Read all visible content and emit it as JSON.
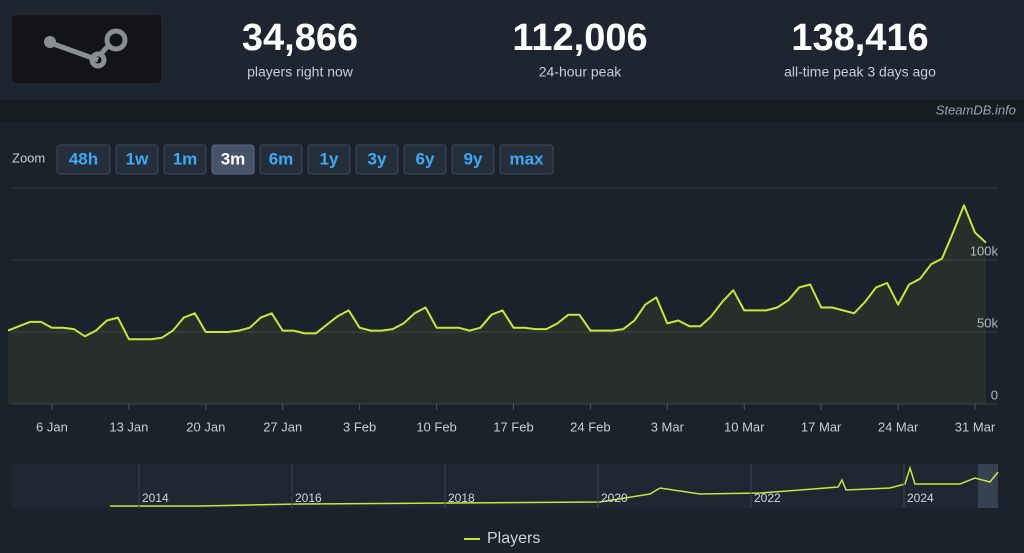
{
  "header": {
    "stats": [
      {
        "value": "34,866",
        "label": "players right now"
      },
      {
        "value": "112,006",
        "label": "24-hour peak"
      },
      {
        "value": "138,416",
        "label": "all-time peak 3 days ago"
      }
    ],
    "source": "SteamDB.info"
  },
  "zoom": {
    "label": "Zoom",
    "buttons": [
      "48h",
      "1w",
      "1m",
      "3m",
      "6m",
      "1y",
      "3y",
      "6y",
      "9y",
      "max"
    ],
    "active": "3m"
  },
  "chart_data": {
    "type": "line",
    "categories": [
      null,
      null,
      null,
      null,
      "6 Jan",
      null,
      null,
      null,
      null,
      null,
      null,
      "13 Jan",
      null,
      null,
      null,
      null,
      null,
      null,
      "20 Jan",
      null,
      null,
      null,
      null,
      null,
      null,
      "27 Jan",
      null,
      null,
      null,
      null,
      null,
      null,
      "3 Feb",
      null,
      null,
      null,
      null,
      null,
      null,
      "10 Feb",
      null,
      null,
      null,
      null,
      null,
      null,
      "17 Feb",
      null,
      null,
      null,
      null,
      null,
      null,
      "24 Feb",
      null,
      null,
      null,
      null,
      null,
      null,
      "3 Mar",
      null,
      null,
      null,
      null,
      null,
      null,
      "10 Mar",
      null,
      null,
      null,
      null,
      null,
      null,
      "17 Mar",
      null,
      null,
      null,
      null,
      null,
      null,
      "24 Mar",
      null,
      null,
      null,
      null,
      null,
      null,
      "31 Mar",
      null
    ],
    "series": [
      {
        "name": "Players",
        "color": "#c8e63c",
        "values": [
          51000,
          54000,
          57000,
          57000,
          53000,
          53000,
          52000,
          47000,
          51000,
          58000,
          60000,
          45000,
          45000,
          45000,
          46000,
          51000,
          60000,
          63000,
          50000,
          50000,
          50000,
          51000,
          53000,
          60000,
          63000,
          51000,
          51000,
          49000,
          49000,
          55000,
          61000,
          65000,
          53000,
          51000,
          51000,
          52000,
          56000,
          63000,
          67000,
          53000,
          53000,
          53000,
          51000,
          53000,
          62000,
          65000,
          53000,
          53000,
          52000,
          52000,
          56000,
          62000,
          62000,
          51000,
          51000,
          51000,
          52000,
          58000,
          69000,
          74000,
          56000,
          58000,
          54000,
          54000,
          61000,
          71000,
          79000,
          65000,
          65000,
          65000,
          67000,
          72000,
          81000,
          83000,
          67000,
          67000,
          65000,
          63000,
          71000,
          81000,
          84000,
          69000,
          83000,
          87000,
          97000,
          101000,
          119000,
          138000,
          119000,
          112000
        ]
      }
    ],
    "ylim": [
      0,
      150000
    ],
    "yticks": [
      0,
      {
        "value": 50000,
        "label": "50k"
      },
      {
        "value": 100000,
        "label": "100k"
      }
    ],
    "grid": true,
    "navigator_labels": [
      "2014",
      "2016",
      "2018",
      "2020",
      "2022",
      "2024"
    ]
  }
}
